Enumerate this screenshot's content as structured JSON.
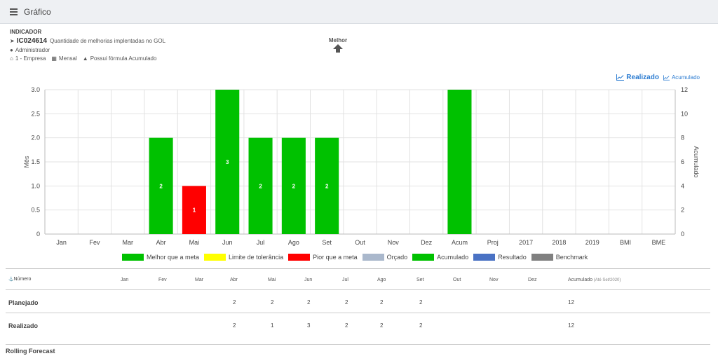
{
  "header": {
    "title": "Gráfico"
  },
  "indicator": {
    "label": "INDICADOR",
    "code": "IC024614",
    "name": "Quantidade de melhorias implentadas no GOL",
    "owner": "Administrador",
    "company": "1 - Empresa",
    "period": "Mensal",
    "formula": "Possui fórmula Acumulado",
    "better": "Melhor"
  },
  "links": {
    "realizado": "Realizado",
    "acumulado": "Acumulado"
  },
  "chart_data": {
    "type": "bar",
    "categories": [
      "Jan",
      "Fev",
      "Mar",
      "Abr",
      "Mai",
      "Jun",
      "Jul",
      "Ago",
      "Set",
      "Out",
      "Nov",
      "Dez",
      "Acum",
      "Proj",
      "2017",
      "2018",
      "2019",
      "BMI",
      "BME"
    ],
    "values": [
      null,
      null,
      null,
      2,
      1,
      3,
      2,
      2,
      2,
      null,
      null,
      null,
      12,
      null,
      null,
      null,
      null,
      null,
      null
    ],
    "bar_colors": [
      null,
      null,
      null,
      "#00c100",
      "#ff0000",
      "#00c100",
      "#00c100",
      "#00c100",
      "#00c100",
      null,
      null,
      null,
      "#00c100",
      null,
      null,
      null,
      null,
      null,
      null
    ],
    "data_labels": [
      "",
      "",
      "",
      "2",
      "1",
      "3",
      "2",
      "2",
      "2",
      "",
      "",
      "",
      "",
      "",
      "",
      "",
      "",
      "",
      ""
    ],
    "ylabel": "Mês",
    "y2label": "Acumulado",
    "ylim": [
      0,
      3.0
    ],
    "y2lim": [
      0,
      12
    ],
    "yticks": [
      "0",
      "0.5",
      "1.0",
      "1.5",
      "2.0",
      "2.5",
      "3.0"
    ],
    "y2ticks": [
      "0",
      "2",
      "4",
      "6",
      "8",
      "10",
      "12"
    ],
    "grid": true
  },
  "legend": [
    {
      "label": "Melhor que a meta",
      "color": "#00c100"
    },
    {
      "label": "Limite de tolerância",
      "color": "#ffff00"
    },
    {
      "label": "Pior que a meta",
      "color": "#ff0000"
    },
    {
      "label": "Orçado",
      "color": "#aab8cc"
    },
    {
      "label": "Acumulado",
      "color": "#00c100"
    },
    {
      "label": "Resultado",
      "color": "#4a72c4"
    },
    {
      "label": "Benchmark",
      "color": "#808080"
    }
  ],
  "table": {
    "head_label": "Número",
    "columns": [
      "Jan",
      "Fev",
      "Mar",
      "Abr",
      "Mai",
      "Jun",
      "Jul",
      "Ago",
      "Set",
      "Out",
      "Nov",
      "Dez",
      "Acumulado"
    ],
    "acum_note": "(Até Set/2020)",
    "rows": [
      {
        "label": "Planejado",
        "values": [
          "",
          "",
          "",
          "2",
          "2",
          "2",
          "2",
          "2",
          "2",
          "",
          "",
          "",
          "12"
        ]
      },
      {
        "label": "Realizado",
        "values": [
          "",
          "",
          "",
          "2",
          "1",
          "3",
          "2",
          "2",
          "2",
          "",
          "",
          "",
          "12"
        ]
      }
    ],
    "last_row_label": "Rolling Forecast"
  }
}
